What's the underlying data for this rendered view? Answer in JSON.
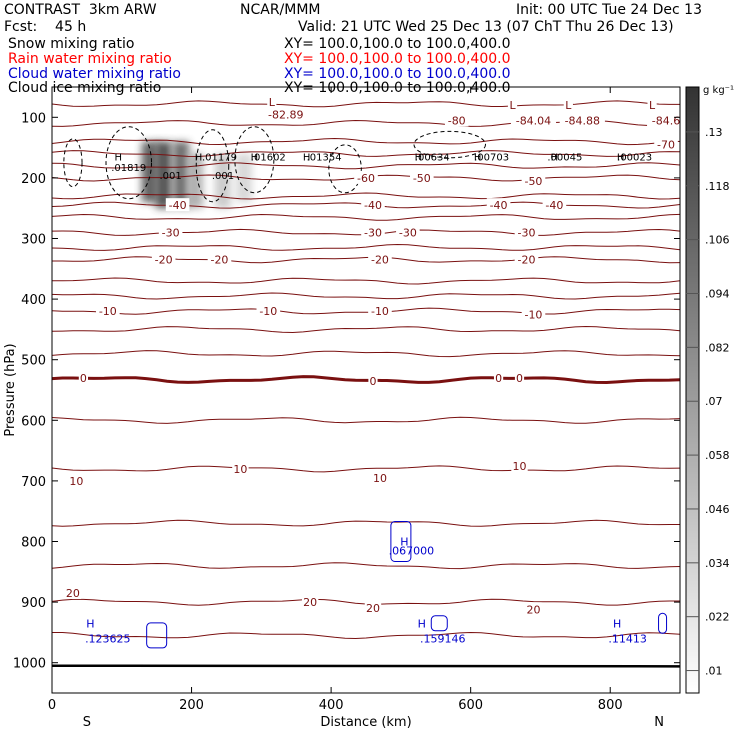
{
  "header": {
    "left_line1": "CONTRAST  3km ARW",
    "center_line1": "NCAR/MMM",
    "right_line1": "Init: 00 UTC Tue 24 Dec 13",
    "left_line2": "Fcst:    45 h",
    "right_line2": "Valid: 21 UTC Wed 25 Dec 13 (07 ChT Thu 26 Dec 13)",
    "fields": [
      {
        "name": "Snow mixing ratio",
        "xy": "XY= 100.0,100.0 to 100.0,400.0",
        "color": "#000000"
      },
      {
        "name": "Rain water mixing ratio",
        "xy": "XY= 100.0,100.0 to 100.0,400.0",
        "color": "#ff0000"
      },
      {
        "name": "Cloud water mixing ratio",
        "xy": "XY= 100.0,100.0 to 100.0,400.0",
        "color": "#0000cc"
      },
      {
        "name": "Cloud ice mixing ratio",
        "xy": "XY= 100.0,100.0 to 100.0,400.0",
        "color": "#000000"
      }
    ]
  },
  "colors": {
    "temperature_contour": "#7a1010",
    "cloud_water": "#0000cc",
    "frame": "#000000"
  },
  "chart_data": {
    "type": "contour-cross-section",
    "xlabel": "Distance (km)",
    "ylabel": "Pressure (hPa)",
    "xlim": [
      0,
      900
    ],
    "ylim": [
      1050,
      50
    ],
    "x_ticks": [
      "0",
      "200",
      "400",
      "600",
      "800"
    ],
    "y_ticks": [
      "100",
      "200",
      "300",
      "400",
      "500",
      "600",
      "700",
      "800",
      "900",
      "1000"
    ],
    "x_end_labels": {
      "left": "S",
      "right": "N"
    },
    "temperature_contour_labels": [
      {
        "text": "-82.89",
        "x": 335,
        "p": 95
      },
      {
        "text": "L",
        "x": 315,
        "p": 75
      },
      {
        "text": "-80",
        "x": 580,
        "p": 105
      },
      {
        "text": "L",
        "x": 660,
        "p": 80
      },
      {
        "text": "-84.04",
        "x": 690,
        "p": 105
      },
      {
        "text": "L",
        "x": 740,
        "p": 80
      },
      {
        "text": "-84.88",
        "x": 760,
        "p": 105
      },
      {
        "text": "L",
        "x": 860,
        "p": 80
      },
      {
        "text": "-84.6",
        "x": 880,
        "p": 105
      },
      {
        "text": "-70",
        "x": 880,
        "p": 145
      },
      {
        "text": "-60",
        "x": 450,
        "p": 200
      },
      {
        "text": "-50",
        "x": 530,
        "p": 200
      },
      {
        "text": "-50",
        "x": 690,
        "p": 205
      },
      {
        "text": "-40",
        "x": 180,
        "p": 245
      },
      {
        "text": "-40",
        "x": 460,
        "p": 245
      },
      {
        "text": "-40",
        "x": 640,
        "p": 245
      },
      {
        "text": "-40",
        "x": 720,
        "p": 245
      },
      {
        "text": "-30",
        "x": 170,
        "p": 290
      },
      {
        "text": "-30",
        "x": 460,
        "p": 290
      },
      {
        "text": "-30",
        "x": 510,
        "p": 290
      },
      {
        "text": "-30",
        "x": 680,
        "p": 290
      },
      {
        "text": "-20",
        "x": 160,
        "p": 335
      },
      {
        "text": "-20",
        "x": 240,
        "p": 335
      },
      {
        "text": "-20",
        "x": 470,
        "p": 335
      },
      {
        "text": "-20",
        "x": 680,
        "p": 335
      },
      {
        "text": "-10",
        "x": 80,
        "p": 420
      },
      {
        "text": "-10",
        "x": 310,
        "p": 420
      },
      {
        "text": "-10",
        "x": 470,
        "p": 420
      },
      {
        "text": "-10",
        "x": 690,
        "p": 425
      },
      {
        "text": "0",
        "x": 45,
        "p": 530
      },
      {
        "text": "0",
        "x": 460,
        "p": 535
      },
      {
        "text": "0",
        "x": 640,
        "p": 530
      },
      {
        "text": "0",
        "x": 670,
        "p": 530
      },
      {
        "text": "10",
        "x": 35,
        "p": 700
      },
      {
        "text": "10",
        "x": 270,
        "p": 680
      },
      {
        "text": "10",
        "x": 470,
        "p": 695
      },
      {
        "text": "10",
        "x": 670,
        "p": 675
      },
      {
        "text": "20",
        "x": 30,
        "p": 885
      },
      {
        "text": "20",
        "x": 370,
        "p": 900
      },
      {
        "text": "20",
        "x": 460,
        "p": 910
      },
      {
        "text": "20",
        "x": 690,
        "p": 912
      }
    ],
    "temperature_contour_levels": [
      {
        "p": 78
      },
      {
        "p": 110
      },
      {
        "p": 140
      },
      {
        "p": 160
      },
      {
        "p": 180
      },
      {
        "p": 200
      },
      {
        "p": 230
      },
      {
        "p": 245
      },
      {
        "p": 265
      },
      {
        "p": 290
      },
      {
        "p": 315
      },
      {
        "p": 335
      },
      {
        "p": 370
      },
      {
        "p": 395
      },
      {
        "p": 420
      },
      {
        "p": 450
      },
      {
        "p": 490
      },
      {
        "p": 533,
        "bold": true
      },
      {
        "p": 600
      },
      {
        "p": 680
      },
      {
        "p": 770
      },
      {
        "p": 840
      },
      {
        "p": 900
      },
      {
        "p": 955
      }
    ],
    "cloud_ice_labels": [
      {
        "text": "H",
        "x": 95,
        "p": 165
      },
      {
        "text": ".01819",
        "x": 110,
        "p": 182
      },
      {
        "text": "H",
        "x": 210,
        "p": 165
      },
      {
        "text": ".01179",
        "x": 240,
        "p": 165
      },
      {
        "text": "H",
        "x": 290,
        "p": 165
      },
      {
        "text": ".01602",
        "x": 310,
        "p": 165
      },
      {
        "text": "H",
        "x": 365,
        "p": 165
      },
      {
        "text": ".01354",
        "x": 390,
        "p": 165
      },
      {
        "text": ".001",
        "x": 170,
        "p": 195
      },
      {
        "text": ".001",
        "x": 245,
        "p": 195
      },
      {
        "text": "H",
        "x": 525,
        "p": 165
      },
      {
        "text": ".00634",
        "x": 545,
        "p": 165
      },
      {
        "text": "H",
        "x": 610,
        "p": 165
      },
      {
        "text": ".00703",
        "x": 630,
        "p": 165
      },
      {
        "text": "H",
        "x": 720,
        "p": 165
      },
      {
        "text": ".00045",
        "x": 735,
        "p": 165
      },
      {
        "text": "H",
        "x": 815,
        "p": 165
      },
      {
        "text": ".00023",
        "x": 835,
        "p": 165
      }
    ],
    "cloud_water_labels": [
      {
        "text": "H",
        "x": 505,
        "p": 800
      },
      {
        "text": ".067000",
        "x": 515,
        "p": 815
      },
      {
        "text": "H",
        "x": 55,
        "p": 935
      },
      {
        "text": ".123625",
        "x": 80,
        "p": 960
      },
      {
        "text": "H",
        "x": 530,
        "p": 935
      },
      {
        "text": ".159146",
        "x": 560,
        "p": 960
      },
      {
        "text": "H",
        "x": 810,
        "p": 935
      },
      {
        "text": ".11413",
        "x": 825,
        "p": 960
      }
    ],
    "snow_shading_columns": [
      {
        "x": 140,
        "p_top": 140,
        "p_bottom": 240,
        "value": 0.12
      },
      {
        "x": 160,
        "p_top": 140,
        "p_bottom": 250,
        "value": 0.13
      },
      {
        "x": 185,
        "p_top": 140,
        "p_bottom": 250,
        "value": 0.11
      },
      {
        "x": 205,
        "p_top": 160,
        "p_bottom": 250,
        "value": 0.06
      },
      {
        "x": 245,
        "p_top": 160,
        "p_bottom": 250,
        "value": 0.04
      },
      {
        "x": 275,
        "p_top": 160,
        "p_bottom": 240,
        "value": 0.03
      }
    ],
    "colorbar": {
      "unit": "g kg⁻¹",
      "ticks": [
        ".01",
        ".022",
        ".034",
        ".046",
        ".058",
        ".07",
        ".082",
        ".094",
        ".106",
        ".118",
        ".13"
      ],
      "min": 0.005,
      "max": 0.14
    }
  }
}
